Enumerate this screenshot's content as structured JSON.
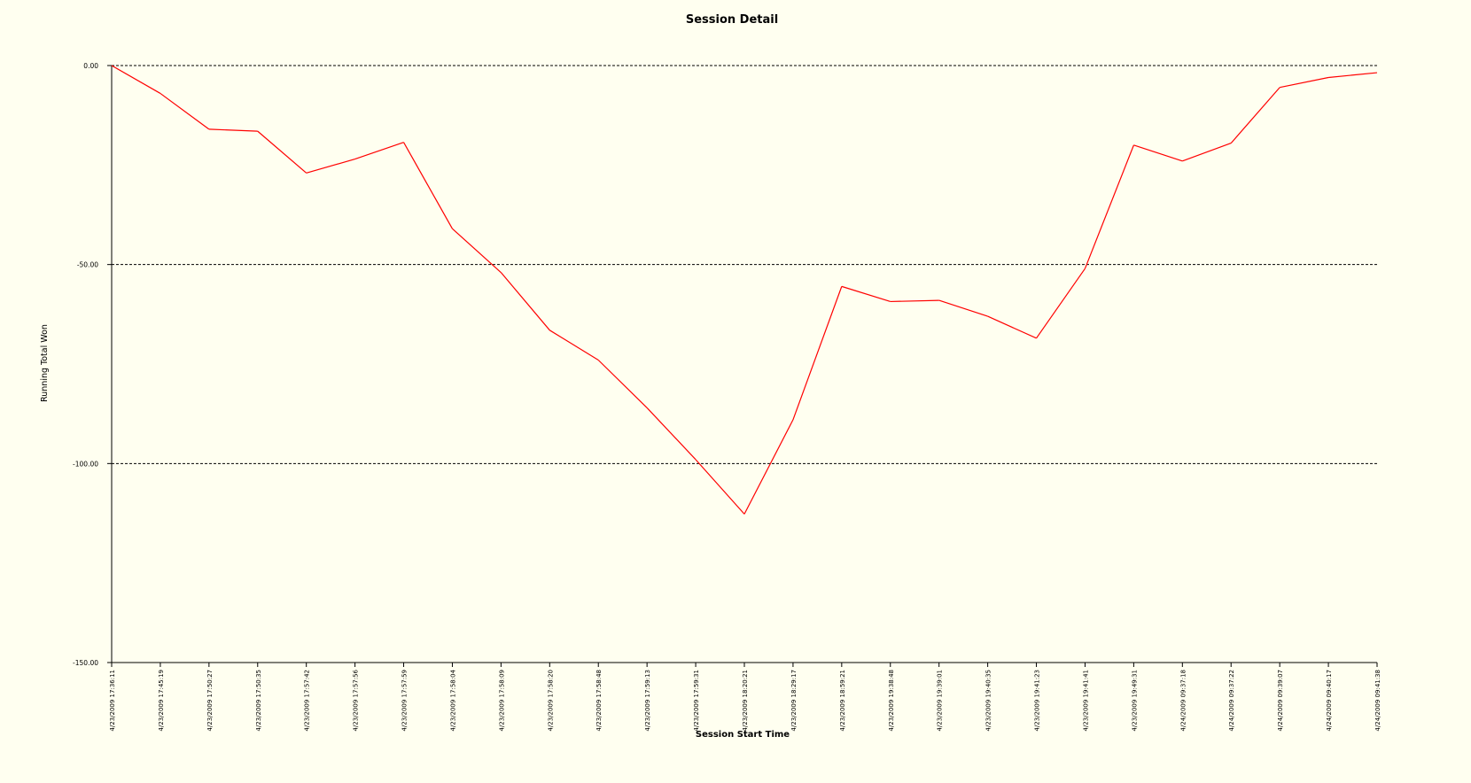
{
  "chart_data": {
    "type": "line",
    "title": "Session Detail",
    "xlabel": "Session Start Time",
    "ylabel": "Running Total Won",
    "ylim": [
      -150,
      0
    ],
    "yticks": [
      0,
      -50,
      -100,
      -150
    ],
    "ytick_labels": [
      "0.00",
      "-50.00",
      "-100.00",
      "-150.00"
    ],
    "grid": true,
    "x": [
      "4/23/2009 17:36:11",
      "4/23/2009 17:45:19",
      "4/23/2009 17:50:27",
      "4/23/2009 17:50:35",
      "4/23/2009 17:57:42",
      "4/23/2009 17:57:56",
      "4/23/2009 17:57:59",
      "4/23/2009 17:58:04",
      "4/23/2009 17:58:09",
      "4/23/2009 17:58:20",
      "4/23/2009 17:58:48",
      "4/23/2009 17:59:13",
      "4/23/2009 17:59:31",
      "4/23/2009 18:20:21",
      "4/23/2009 18:29:17",
      "4/23/2009 18:59:21",
      "4/23/2009 19:38:48",
      "4/23/2009 19:39:01",
      "4/23/2009 19:40:35",
      "4/23/2009 19:41:23",
      "4/23/2009 19:41:41",
      "4/23/2009 19:49:31",
      "4/24/2009 09:37:18",
      "4/24/2009 09:37:22",
      "4/24/2009 09:39:07",
      "4/24/2009 09:40:17",
      "4/24/2009 09:41:38"
    ],
    "series": [
      {
        "values": [
          0,
          -7,
          -16,
          -16.5,
          -27,
          -23.5,
          -19.3,
          -41,
          -52,
          -66.5,
          -74,
          -86,
          -99,
          -112.7,
          -89,
          -55.5,
          -59.3,
          -59,
          -63,
          -68.5,
          -51,
          -20,
          -24,
          -19.5,
          -5.5,
          -3,
          -1.8
        ],
        "color": "#FF0000"
      }
    ]
  }
}
